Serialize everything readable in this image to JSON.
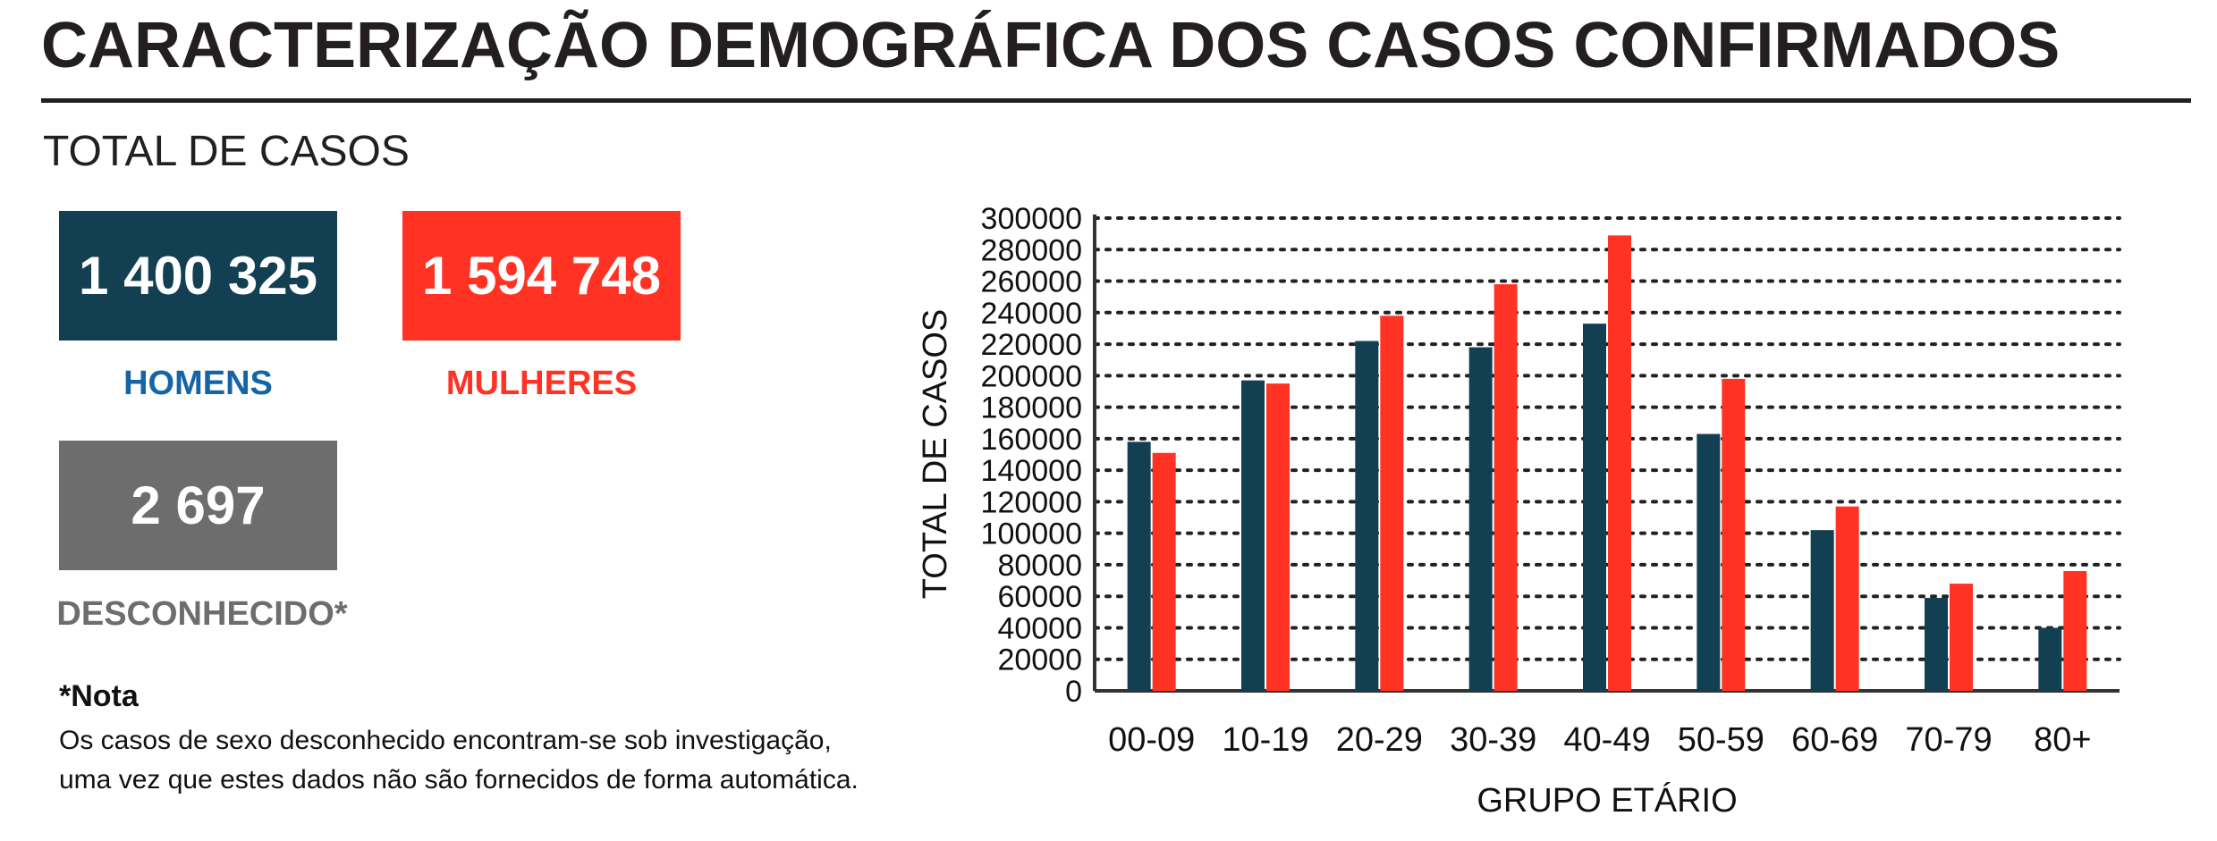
{
  "header": {
    "title": "CARACTERIZAÇÃO DEMOGRÁFICA DOS CASOS CONFIRMADOS",
    "section_label": "TOTAL DE CASOS"
  },
  "stats": {
    "men": {
      "value": "1 400 325",
      "label": "HOMENS",
      "color": "#123f52",
      "label_color": "#1565a6"
    },
    "women": {
      "value": "1 594 748",
      "label": "MULHERES",
      "color": "#ff3224",
      "label_color": "#ff3224"
    },
    "unknown": {
      "value": "2 697",
      "label": "DESCONHECIDO*",
      "color": "#6d6d6d",
      "label_color": "#6d6d6d"
    }
  },
  "note": {
    "title": "*Nota",
    "line1": "Os casos de sexo desconhecido encontram-se sob investigação,",
    "line2": "uma vez que estes dados não são fornecidos de forma automática."
  },
  "chart_data": {
    "type": "bar",
    "categories": [
      "00-09",
      "10-19",
      "20-29",
      "30-39",
      "40-49",
      "50-59",
      "60-69",
      "70-79",
      "80+"
    ],
    "series": [
      {
        "values": [
          158000,
          197000,
          222000,
          218000,
          233000,
          163000,
          102000,
          59000,
          40000
        ],
        "color": "#123f52"
      },
      {
        "values": [
          151000,
          195000,
          238000,
          258000,
          289000,
          198000,
          117000,
          68000,
          76000
        ],
        "color": "#ff3224"
      }
    ],
    "ylim": [
      0,
      300000
    ],
    "yticks": [
      "0",
      "20000",
      "40000",
      "60000",
      "80000",
      "100000",
      "120000",
      "140000",
      "160000",
      "180000",
      "200000",
      "220000",
      "240000",
      "260000",
      "280000",
      "300000"
    ],
    "xlabel": "GRUPO ETÁRIO",
    "ylabel": "TOTAL DE CASOS",
    "grid": true
  }
}
